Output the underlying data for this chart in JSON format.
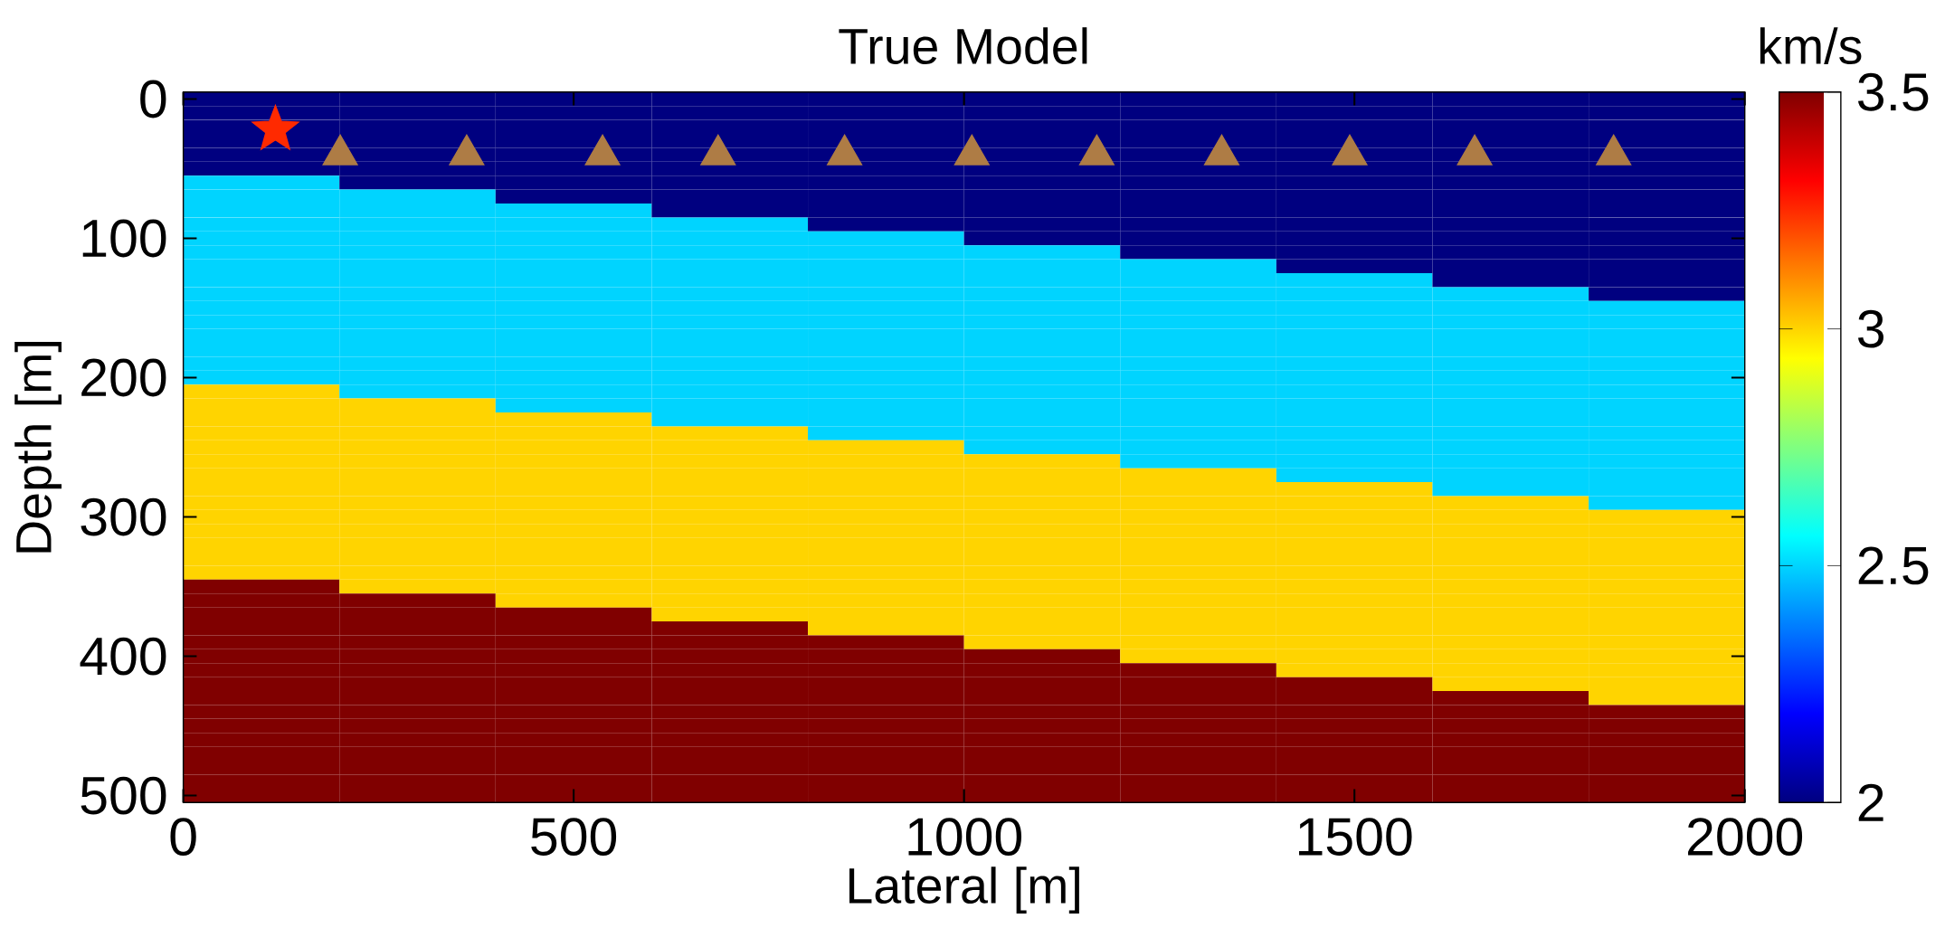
{
  "chart_data": {
    "type": "heatmap",
    "title": "True Model",
    "xlabel": "Lateral [m]",
    "ylabel": "Depth [m]",
    "clabel": "km/s",
    "x": [
      100,
      300,
      500,
      700,
      900,
      1100,
      1300,
      1500,
      1700,
      1900
    ],
    "y": [
      0,
      10,
      20,
      30,
      40,
      50,
      60,
      70,
      80,
      90,
      100,
      110,
      120,
      130,
      140,
      150,
      160,
      170,
      180,
      190,
      200,
      210,
      220,
      230,
      240,
      250,
      260,
      270,
      280,
      290,
      300,
      310,
      320,
      330,
      340,
      350,
      360,
      370,
      380,
      390,
      400,
      410,
      420,
      430,
      440,
      450,
      460,
      470,
      480,
      490,
      500
    ],
    "cells": [
      [
        2,
        2,
        2,
        2,
        2,
        2,
        2,
        2,
        2,
        2
      ],
      [
        2,
        2,
        2,
        2,
        2,
        2,
        2,
        2,
        2,
        2
      ],
      [
        2,
        2,
        2,
        2,
        2,
        2,
        2,
        2,
        2,
        2
      ],
      [
        2,
        2,
        2,
        2,
        2,
        2,
        2,
        2,
        2,
        2
      ],
      [
        2,
        2,
        2,
        2,
        2,
        2,
        2,
        2,
        2,
        2
      ],
      [
        2,
        2,
        2,
        2,
        2,
        2,
        2,
        2,
        2,
        2
      ],
      [
        2.5,
        2,
        2,
        2,
        2,
        2,
        2,
        2,
        2,
        2
      ],
      [
        2.5,
        2.5,
        2,
        2,
        2,
        2,
        2,
        2,
        2,
        2
      ],
      [
        2.5,
        2.5,
        2.5,
        2,
        2,
        2,
        2,
        2,
        2,
        2
      ],
      [
        2.5,
        2.5,
        2.5,
        2.5,
        2,
        2,
        2,
        2,
        2,
        2
      ],
      [
        2.5,
        2.5,
        2.5,
        2.5,
        2.5,
        2,
        2,
        2,
        2,
        2
      ],
      [
        2.5,
        2.5,
        2.5,
        2.5,
        2.5,
        2.5,
        2,
        2,
        2,
        2
      ],
      [
        2.5,
        2.5,
        2.5,
        2.5,
        2.5,
        2.5,
        2.5,
        2,
        2,
        2
      ],
      [
        2.5,
        2.5,
        2.5,
        2.5,
        2.5,
        2.5,
        2.5,
        2.5,
        2,
        2
      ],
      [
        2.5,
        2.5,
        2.5,
        2.5,
        2.5,
        2.5,
        2.5,
        2.5,
        2.5,
        2
      ],
      [
        2.5,
        2.5,
        2.5,
        2.5,
        2.5,
        2.5,
        2.5,
        2.5,
        2.5,
        2.5
      ],
      [
        2.5,
        2.5,
        2.5,
        2.5,
        2.5,
        2.5,
        2.5,
        2.5,
        2.5,
        2.5
      ],
      [
        2.5,
        2.5,
        2.5,
        2.5,
        2.5,
        2.5,
        2.5,
        2.5,
        2.5,
        2.5
      ],
      [
        2.5,
        2.5,
        2.5,
        2.5,
        2.5,
        2.5,
        2.5,
        2.5,
        2.5,
        2.5
      ],
      [
        2.5,
        2.5,
        2.5,
        2.5,
        2.5,
        2.5,
        2.5,
        2.5,
        2.5,
        2.5
      ],
      [
        2.5,
        2.5,
        2.5,
        2.5,
        2.5,
        2.5,
        2.5,
        2.5,
        2.5,
        2.5
      ],
      [
        3,
        2.5,
        2.5,
        2.5,
        2.5,
        2.5,
        2.5,
        2.5,
        2.5,
        2.5
      ],
      [
        3,
        3,
        2.5,
        2.5,
        2.5,
        2.5,
        2.5,
        2.5,
        2.5,
        2.5
      ],
      [
        3,
        3,
        3,
        2.5,
        2.5,
        2.5,
        2.5,
        2.5,
        2.5,
        2.5
      ],
      [
        3,
        3,
        3,
        3,
        2.5,
        2.5,
        2.5,
        2.5,
        2.5,
        2.5
      ],
      [
        3,
        3,
        3,
        3,
        3,
        2.5,
        2.5,
        2.5,
        2.5,
        2.5
      ],
      [
        3,
        3,
        3,
        3,
        3,
        3,
        2.5,
        2.5,
        2.5,
        2.5
      ],
      [
        3,
        3,
        3,
        3,
        3,
        3,
        3,
        2.5,
        2.5,
        2.5
      ],
      [
        3,
        3,
        3,
        3,
        3,
        3,
        3,
        3,
        2.5,
        2.5
      ],
      [
        3,
        3,
        3,
        3,
        3,
        3,
        3,
        3,
        3,
        2.5
      ],
      [
        3,
        3,
        3,
        3,
        3,
        3,
        3,
        3,
        3,
        3
      ],
      [
        3,
        3,
        3,
        3,
        3,
        3,
        3,
        3,
        3,
        3
      ],
      [
        3,
        3,
        3,
        3,
        3,
        3,
        3,
        3,
        3,
        3
      ],
      [
        3,
        3,
        3,
        3,
        3,
        3,
        3,
        3,
        3,
        3
      ],
      [
        3,
        3,
        3,
        3,
        3,
        3,
        3,
        3,
        3,
        3
      ],
      [
        3.5,
        3,
        3,
        3,
        3,
        3,
        3,
        3,
        3,
        3
      ],
      [
        3.5,
        3.5,
        3,
        3,
        3,
        3,
        3,
        3,
        3,
        3
      ],
      [
        3.5,
        3.5,
        3.5,
        3,
        3,
        3,
        3,
        3,
        3,
        3
      ],
      [
        3.5,
        3.5,
        3.5,
        3.5,
        3,
        3,
        3,
        3,
        3,
        3
      ],
      [
        3.5,
        3.5,
        3.5,
        3.5,
        3.5,
        3,
        3,
        3,
        3,
        3
      ],
      [
        3.5,
        3.5,
        3.5,
        3.5,
        3.5,
        3.5,
        3,
        3,
        3,
        3
      ],
      [
        3.5,
        3.5,
        3.5,
        3.5,
        3.5,
        3.5,
        3.5,
        3,
        3,
        3
      ],
      [
        3.5,
        3.5,
        3.5,
        3.5,
        3.5,
        3.5,
        3.5,
        3.5,
        3,
        3
      ],
      [
        3.5,
        3.5,
        3.5,
        3.5,
        3.5,
        3.5,
        3.5,
        3.5,
        3.5,
        3
      ],
      [
        3.5,
        3.5,
        3.5,
        3.5,
        3.5,
        3.5,
        3.5,
        3.5,
        3.5,
        3.5
      ],
      [
        3.5,
        3.5,
        3.5,
        3.5,
        3.5,
        3.5,
        3.5,
        3.5,
        3.5,
        3.5
      ],
      [
        3.5,
        3.5,
        3.5,
        3.5,
        3.5,
        3.5,
        3.5,
        3.5,
        3.5,
        3.5
      ],
      [
        3.5,
        3.5,
        3.5,
        3.5,
        3.5,
        3.5,
        3.5,
        3.5,
        3.5,
        3.5
      ],
      [
        3.5,
        3.5,
        3.5,
        3.5,
        3.5,
        3.5,
        3.5,
        3.5,
        3.5,
        3.5
      ],
      [
        3.5,
        3.5,
        3.5,
        3.5,
        3.5,
        3.5,
        3.5,
        3.5,
        3.5,
        3.5
      ],
      [
        3.5,
        3.5,
        3.5,
        3.5,
        3.5,
        3.5,
        3.5,
        3.5,
        3.5,
        3.5
      ]
    ],
    "clim": [
      2,
      3.5
    ],
    "cticks": [
      2,
      2.5,
      3,
      3.5
    ],
    "xlim": [
      0,
      2000
    ],
    "xticks": [
      0,
      500,
      1000,
      1500,
      2000
    ],
    "ylim": [
      505,
      -5
    ],
    "yticks": [
      0,
      100,
      200,
      300,
      400,
      500
    ],
    "series": [
      {
        "type": "scatter",
        "marker": "star",
        "color": "#ff2a00",
        "x": [
          118
        ],
        "values": [
          22
        ]
      },
      {
        "type": "scatter",
        "marker": "triangle",
        "color": "#ae7c45",
        "x": [
          201,
          363,
          537,
          685,
          847,
          1010,
          1170,
          1330,
          1494,
          1654,
          1832
        ],
        "values": [
          40,
          40,
          40,
          40,
          40,
          40,
          40,
          40,
          40,
          40,
          40
        ]
      }
    ]
  }
}
